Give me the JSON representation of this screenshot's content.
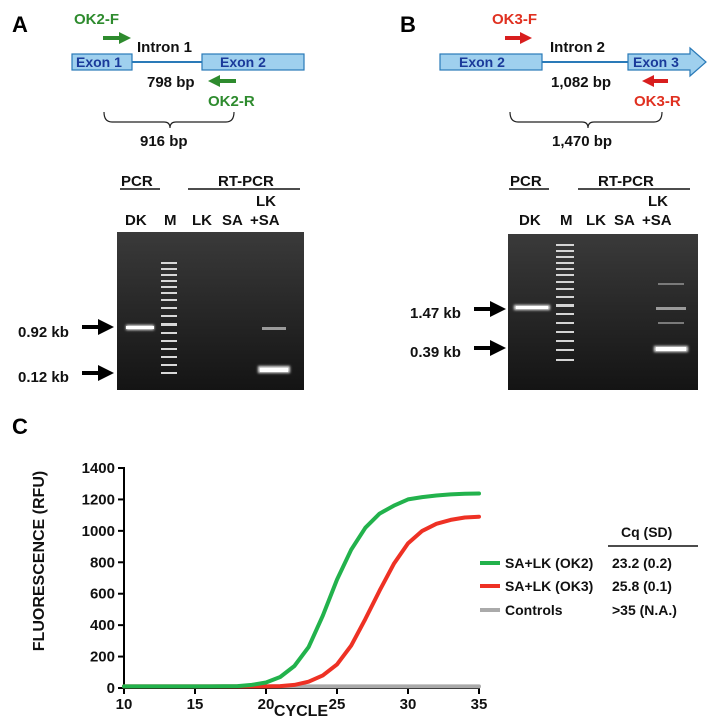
{
  "panel_a": {
    "letter": "A",
    "primer_f": "OK2-F",
    "primer_r": "OK2-R",
    "intron": "Intron 1",
    "exon_left": "Exon 1",
    "exon_right": "Exon 2",
    "intron_size": "798 bp",
    "amplicon_size": "916 bp",
    "pcr_label": "PCR",
    "rtpcr_label": "RT-PCR",
    "lanes": [
      "DK",
      "M",
      "LK",
      "SA",
      "LK",
      "+SA"
    ],
    "marker_upper": "0.92 kb",
    "marker_lower": "0.12 kb"
  },
  "panel_b": {
    "letter": "B",
    "primer_f": "OK3-F",
    "primer_r": "OK3-R",
    "intron": "Intron 2",
    "exon_left": "Exon 2",
    "exon_right": "Exon 3",
    "intron_size": "1,082 bp",
    "amplicon_size": "1,470 bp",
    "pcr_label": "PCR",
    "rtpcr_label": "RT-PCR",
    "lanes": [
      "DK",
      "M",
      "LK",
      "SA",
      "LK",
      "+SA"
    ],
    "marker_upper": "1.47 kb",
    "marker_lower": "0.39 kb"
  },
  "colors": {
    "ok2": "#2e8b2e",
    "ok3": "#e03020",
    "controls": "#aaaaaa",
    "exon_fill": "#9fd0ee",
    "exon_stroke": "#2a7ab8",
    "exon_text": "#1a3a9a"
  },
  "chart_data": {
    "type": "line",
    "panel_letter": "C",
    "xlabel": "CYCLE",
    "ylabel": "FLUORESCENCE (RFU)",
    "xlim": [
      10,
      35
    ],
    "ylim": [
      0,
      1400
    ],
    "xticks": [
      10,
      15,
      20,
      25,
      30,
      35
    ],
    "yticks": [
      0,
      200,
      400,
      600,
      800,
      1000,
      1200,
      1400
    ],
    "grid": false,
    "legend_position": "right",
    "cq_header": "Cq (SD)",
    "series": [
      {
        "name": "SA+LK (OK2)",
        "cq": "23.2 (0.2)",
        "color": "#22b24c",
        "x": [
          10,
          12,
          14,
          16,
          18,
          19,
          20,
          21,
          22,
          23,
          24,
          25,
          26,
          27,
          28,
          29,
          30,
          31,
          32,
          33,
          34,
          35
        ],
        "y": [
          10,
          10,
          10,
          10,
          12,
          20,
          35,
          70,
          140,
          260,
          460,
          690,
          880,
          1020,
          1110,
          1160,
          1200,
          1215,
          1225,
          1232,
          1236,
          1238
        ]
      },
      {
        "name": "SA+LK (OK3)",
        "cq": "25.8 (0.1)",
        "color": "#ee3124",
        "x": [
          10,
          14,
          18,
          20,
          21,
          22,
          23,
          24,
          25,
          26,
          27,
          28,
          29,
          30,
          31,
          32,
          33,
          34,
          35
        ],
        "y": [
          10,
          10,
          10,
          10,
          12,
          20,
          40,
          80,
          150,
          270,
          440,
          620,
          790,
          920,
          1000,
          1045,
          1070,
          1085,
          1090
        ]
      },
      {
        "name": "Controls",
        "cq": ">35 (N.A.)",
        "color": "#aaaaaa",
        "x": [
          10,
          35
        ],
        "y": [
          10,
          10
        ]
      }
    ]
  }
}
